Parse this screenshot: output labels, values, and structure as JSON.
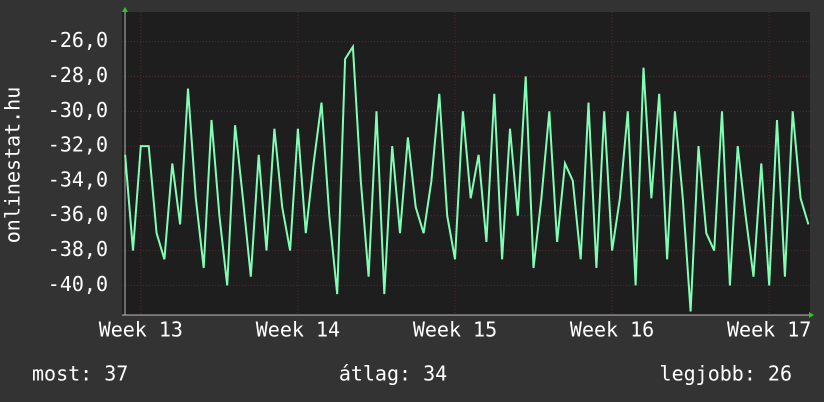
{
  "chart_data": {
    "type": "line",
    "y_label": "onlinestat.hu",
    "x": [
      12.9,
      12.95,
      13.0,
      13.05,
      13.1,
      13.15,
      13.2,
      13.25,
      13.3,
      13.35,
      13.4,
      13.45,
      13.5,
      13.55,
      13.6,
      13.65,
      13.7,
      13.75,
      13.8,
      13.85,
      13.9,
      13.95,
      14.0,
      14.05,
      14.1,
      14.15,
      14.2,
      14.25,
      14.3,
      14.35,
      14.4,
      14.45,
      14.5,
      14.55,
      14.6,
      14.65,
      14.7,
      14.75,
      14.8,
      14.85,
      14.9,
      14.95,
      15.0,
      15.05,
      15.1,
      15.15,
      15.2,
      15.25,
      15.3,
      15.35,
      15.4,
      15.45,
      15.5,
      15.55,
      15.6,
      15.65,
      15.7,
      15.75,
      15.8,
      15.85,
      15.9,
      15.95,
      16.0,
      16.05,
      16.1,
      16.15,
      16.2,
      16.25,
      16.3,
      16.35,
      16.4,
      16.45,
      16.5,
      16.55,
      16.6,
      16.65,
      16.7,
      16.75,
      16.8,
      16.85,
      16.9,
      16.95,
      17.0,
      17.05,
      17.1,
      17.15,
      17.2,
      17.25
    ],
    "values": [
      -32.5,
      -38,
      -32,
      -32,
      -37,
      -38.5,
      -33,
      -36.5,
      -28.7,
      -35,
      -39,
      -30.5,
      -36,
      -40,
      -30.8,
      -35,
      -39.5,
      -32.5,
      -38,
      -31,
      -35.5,
      -38,
      -31,
      -37,
      -33,
      -29.5,
      -36,
      -40.5,
      -27,
      -26.3,
      -34,
      -39.5,
      -30,
      -40.5,
      -32,
      -37,
      -31.5,
      -35.5,
      -37,
      -34,
      -29,
      -36,
      -38.5,
      -30,
      -35,
      -32.5,
      -37.5,
      -29,
      -38.5,
      -31,
      -36,
      -28,
      -39,
      -35,
      -30,
      -37.5,
      -33,
      -34,
      -38.5,
      -29.5,
      -39,
      -30,
      -38,
      -35,
      -30,
      -40,
      -27.5,
      -35,
      -29,
      -38.5,
      -30,
      -35,
      -41.5,
      -32,
      -37,
      -38,
      -30,
      -40,
      -32,
      -36,
      -39.5,
      -33,
      -40,
      -30.5,
      -39.5,
      -30,
      -35,
      -36.5
    ],
    "color": "#80ffb4",
    "xlim": [
      12.88,
      17.26
    ],
    "ylim": [
      -41.7,
      -24.3
    ],
    "xticks": [
      {
        "value": 13,
        "label": "Week 13"
      },
      {
        "value": 14,
        "label": "Week 14"
      },
      {
        "value": 15,
        "label": "Week 15"
      },
      {
        "value": 16,
        "label": "Week 16"
      },
      {
        "value": 17,
        "label": "Week 17"
      }
    ],
    "yticks": [
      {
        "value": -40,
        "label": "-40,0"
      },
      {
        "value": -38,
        "label": "-38,0"
      },
      {
        "value": -36,
        "label": "-36,0"
      },
      {
        "value": -34,
        "label": "-34,0"
      },
      {
        "value": -32,
        "label": "-32,0"
      },
      {
        "value": -30,
        "label": "-30,0"
      },
      {
        "value": -28,
        "label": "-28,0"
      },
      {
        "value": -26,
        "label": "-26,0"
      }
    ],
    "grid": true,
    "footer": [
      "most: 37",
      "átlag: 34",
      "legjobb: 26"
    ]
  }
}
